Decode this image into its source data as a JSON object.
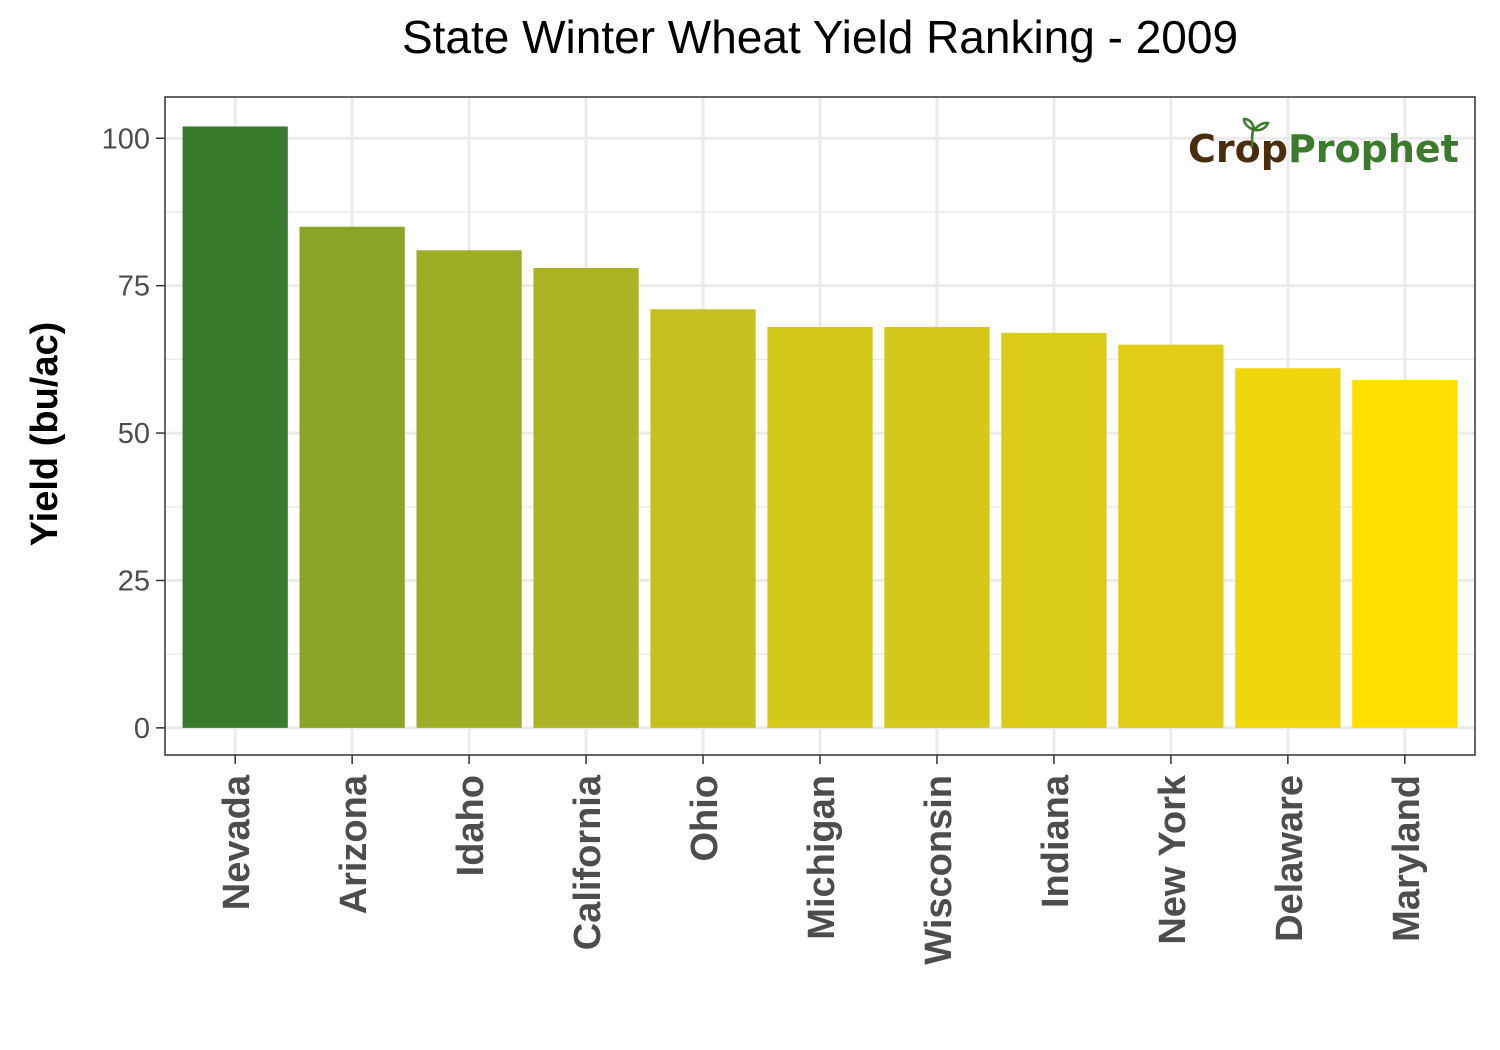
{
  "chart_data": {
    "type": "bar",
    "title": "State Winter Wheat Yield Ranking - 2009",
    "xlabel": "",
    "ylabel": "Yield (bu/ac)",
    "categories": [
      "Nevada",
      "Arizona",
      "Idaho",
      "California",
      "Ohio",
      "Michigan",
      "Wisconsin",
      "Indiana",
      "New York",
      "Delaware",
      "Maryland"
    ],
    "values": [
      102,
      85,
      81,
      78,
      71,
      68,
      68,
      67,
      65,
      61,
      59
    ],
    "colors": [
      "#387b2d",
      "#8aa428",
      "#9dae26",
      "#abb424",
      "#c6c11f",
      "#d4c81b",
      "#d4c81b",
      "#dbcb19",
      "#e1cd16",
      "#f0d60c",
      "#ffde00"
    ],
    "ylim": [
      -4.6,
      107
    ],
    "yticks": [
      0,
      25,
      50,
      75,
      100
    ],
    "grid": true,
    "legend": "none"
  },
  "logo": {
    "part1": "Crop",
    "part2": "Prophet",
    "color1": "#4b2c0d",
    "color2": "#3c7a2d"
  }
}
